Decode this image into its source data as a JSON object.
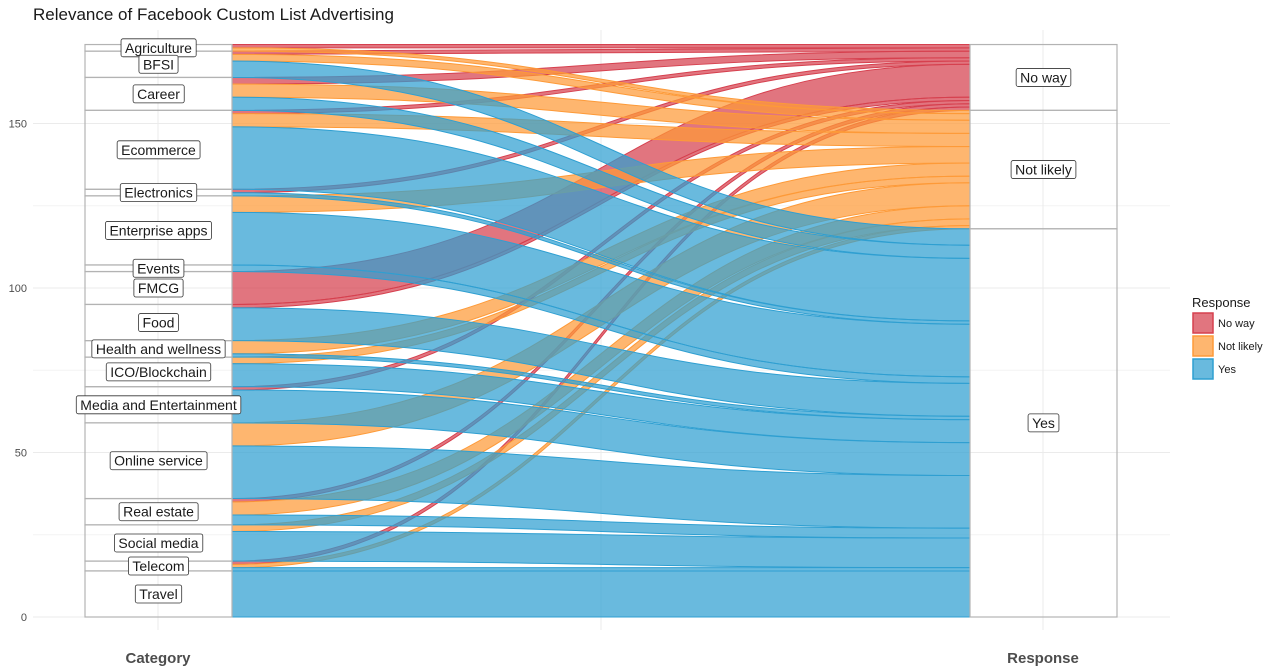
{
  "chart_data": {
    "type": "alluvial",
    "title": "Relevance of Facebook Custom List Advertising",
    "axes": [
      "Category",
      "Response"
    ],
    "ylim": [
      0,
      170
    ],
    "y_ticks": [
      0,
      50,
      100,
      150
    ],
    "grid": true,
    "legend": {
      "title": "Response",
      "placement": "right",
      "entries": [
        {
          "name": "No way",
          "color": "#d6404e"
        },
        {
          "name": "Not likely",
          "color": "#fd9a38"
        },
        {
          "name": "Yes",
          "color": "#2f9fd1"
        }
      ]
    },
    "categories": [
      "Agriculture",
      "BFSI",
      "Career",
      "Ecommerce",
      "Electronics",
      "Enterprise apps",
      "Events",
      "FMCG",
      "Food",
      "Health and wellness",
      "ICO/Blockchain",
      "Media and Entertainment",
      "Online service",
      "Real estate",
      "Social media",
      "Telecom",
      "Travel"
    ],
    "responses": [
      "No way",
      "Not likely",
      "Yes"
    ],
    "flows": [
      {
        "category": "Agriculture",
        "no_way": 1,
        "not_likely": 1,
        "yes": 0
      },
      {
        "category": "BFSI",
        "no_way": 1,
        "not_likely": 2,
        "yes": 5
      },
      {
        "category": "Career",
        "no_way": 2,
        "not_likely": 4,
        "yes": 4
      },
      {
        "category": "Ecommerce",
        "no_way": 1,
        "not_likely": 4,
        "yes": 19
      },
      {
        "category": "Electronics",
        "no_way": 1,
        "not_likely": 0,
        "yes": 1
      },
      {
        "category": "Enterprise apps",
        "no_way": 0,
        "not_likely": 5,
        "yes": 16
      },
      {
        "category": "Events",
        "no_way": 0,
        "not_likely": 0,
        "yes": 2
      },
      {
        "category": "FMCG",
        "no_way": 10,
        "not_likely": 0,
        "yes": 0
      },
      {
        "category": "Food",
        "no_way": 1,
        "not_likely": 0,
        "yes": 10
      },
      {
        "category": "Health and wellness",
        "no_way": 0,
        "not_likely": 4,
        "yes": 1
      },
      {
        "category": "ICO/Blockchain",
        "no_way": 0,
        "not_likely": 2,
        "yes": 7
      },
      {
        "category": "Media and Entertainment",
        "no_way": 1,
        "not_likely": 0,
        "yes": 10
      },
      {
        "category": "Online service",
        "no_way": 0,
        "not_likely": 7,
        "yes": 16
      },
      {
        "category": "Real estate",
        "no_way": 1,
        "not_likely": 4,
        "yes": 3
      },
      {
        "category": "Social media",
        "no_way": 0,
        "not_likely": 2,
        "yes": 9
      },
      {
        "category": "Telecom",
        "no_way": 1,
        "not_likely": 1,
        "yes": 1
      },
      {
        "category": "Travel",
        "no_way": 0,
        "not_likely": 0,
        "yes": 14
      }
    ]
  }
}
